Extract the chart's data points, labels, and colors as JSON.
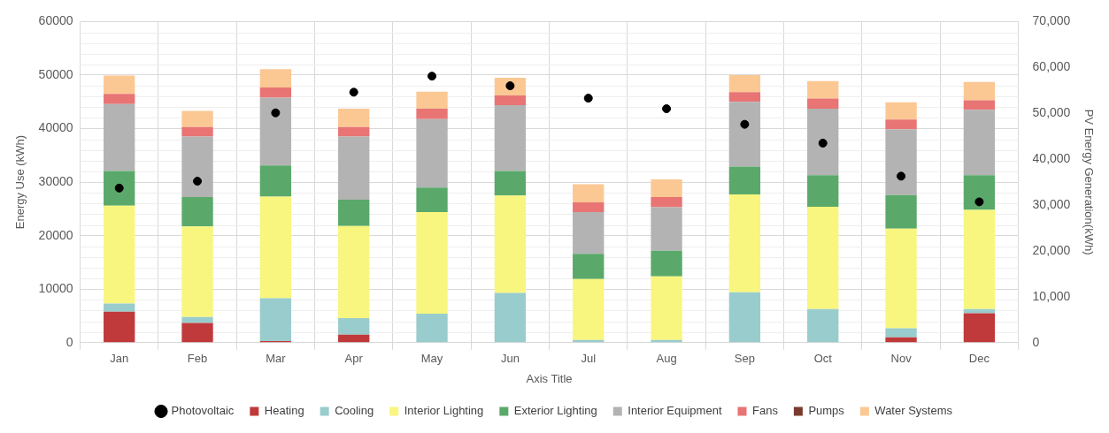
{
  "chart_data": {
    "type": "bar",
    "stacked": true,
    "xlabel": "Axis Title",
    "ylabel": "Energy Use (kWh)",
    "y2label": "PV Energy Generation(kWh)",
    "categories": [
      "Jan",
      "Feb",
      "Mar",
      "Apr",
      "May",
      "Jun",
      "Jul",
      "Aug",
      "Sep",
      "Oct",
      "Nov",
      "Dec"
    ],
    "ylim": [
      0,
      60000
    ],
    "yticks": [
      0,
      10000,
      20000,
      30000,
      40000,
      50000,
      60000
    ],
    "y2lim": [
      0,
      70000
    ],
    "y2ticks": [
      {
        "value": 0,
        "label": "0"
      },
      {
        "value": 10000,
        "label": "10,000"
      },
      {
        "value": 20000,
        "label": "20,000"
      },
      {
        "value": 30000,
        "label": "30,000"
      },
      {
        "value": 40000,
        "label": "40,000"
      },
      {
        "value": 50000,
        "label": "50,000"
      },
      {
        "value": 60000,
        "label": "60,000"
      },
      {
        "value": 70000,
        "label": "70,000"
      }
    ],
    "grid": true,
    "legend": "bottom",
    "series": [
      {
        "name": "Heating",
        "color": "#c0393b",
        "values": [
          5800,
          3700,
          300,
          1500,
          0,
          0,
          0,
          0,
          0,
          0,
          1000,
          5500
        ]
      },
      {
        "name": "Cooling",
        "color": "#99cccc",
        "values": [
          1500,
          1100,
          8000,
          3100,
          5400,
          9300,
          500,
          500,
          9400,
          6300,
          1700,
          800
        ]
      },
      {
        "name": "Interior Lighting",
        "color": "#f8f67e",
        "values": [
          18300,
          16900,
          19000,
          17200,
          19000,
          18200,
          11400,
          11900,
          18300,
          19100,
          18600,
          18500
        ]
      },
      {
        "name": "Exterior Lighting",
        "color": "#5aa96b",
        "values": [
          6500,
          5500,
          5800,
          4900,
          4600,
          4600,
          4700,
          4800,
          5200,
          5900,
          6300,
          6500
        ]
      },
      {
        "name": "Interior Equipment",
        "color": "#b3b3b3",
        "values": [
          12500,
          11300,
          12700,
          11800,
          12800,
          12300,
          7800,
          8100,
          12100,
          12400,
          12300,
          12200
        ]
      },
      {
        "name": "Fans",
        "color": "#e87474",
        "values": [
          1900,
          1800,
          1900,
          1800,
          1900,
          1800,
          1800,
          1900,
          1800,
          1900,
          1800,
          1800
        ]
      },
      {
        "name": "Pumps",
        "color": "#7a3b2e",
        "values": [
          0,
          0,
          0,
          0,
          0,
          0,
          0,
          0,
          0,
          0,
          0,
          0
        ]
      },
      {
        "name": "Water Systems",
        "color": "#fbc894",
        "values": [
          3400,
          3000,
          3400,
          3400,
          3200,
          3300,
          3400,
          3300,
          3200,
          3300,
          3200,
          3400
        ]
      },
      {
        "name": "Photovoltaic",
        "type": "scatter",
        "axis": "y2",
        "marker": "circle",
        "color": "#000000",
        "values": [
          33700,
          35200,
          50100,
          54600,
          58100,
          56000,
          53300,
          51000,
          47600,
          43500,
          36300,
          30700
        ]
      }
    ]
  }
}
